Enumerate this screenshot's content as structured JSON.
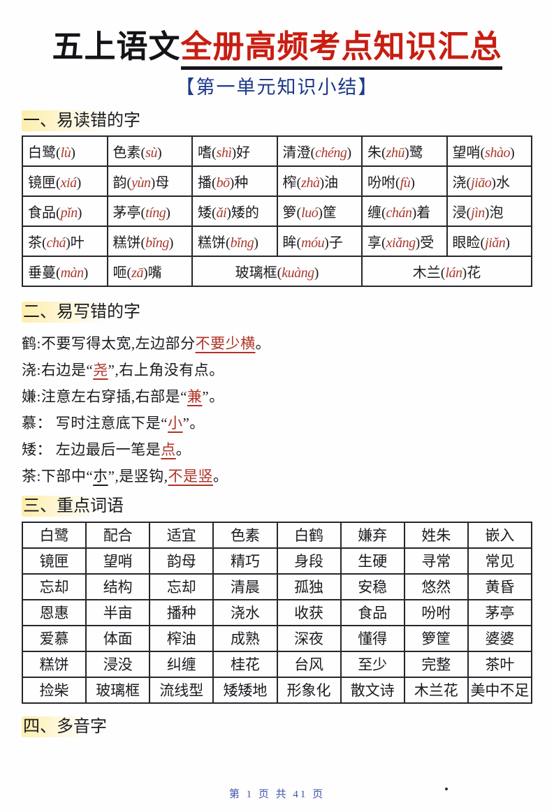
{
  "title": {
    "black": "五上语文",
    "red": "全册高频考点知识汇总"
  },
  "subtitle": "【第一单元知识小结】",
  "sections": {
    "s1": {
      "heading": "一、易读错的字"
    },
    "s2": {
      "heading": "二、易写错的字"
    },
    "s3": {
      "heading": "三、重点词语"
    },
    "s4": {
      "heading": "四、多音字"
    }
  },
  "table1": {
    "columns": 6,
    "rows": [
      [
        {
          "t": "白鹭(lù)"
        },
        {
          "t": "色素(sù)"
        },
        {
          "t": "嗜(shì)好"
        },
        {
          "t": "清澄(chéng)"
        },
        {
          "t": "朱(zhū)鹭"
        },
        {
          "t": "望哨(shào)"
        }
      ],
      [
        {
          "t": "镜匣(xiá)"
        },
        {
          "t": "韵(yùn)母"
        },
        {
          "t": "播(bō)种"
        },
        {
          "t": "榨(zhà)油"
        },
        {
          "t": "吩咐(fù)"
        },
        {
          "t": "浇(jiāo)水"
        }
      ],
      [
        {
          "t": "食品(pǐn)"
        },
        {
          "t": "茅亭(tíng)"
        },
        {
          "t": "矮(ǎi)矮的"
        },
        {
          "t": "箩(luó)筐"
        },
        {
          "t": "缠(chán)着"
        },
        {
          "t": "浸(jìn)泡"
        }
      ],
      [
        {
          "t": "茶(chá)叶"
        },
        {
          "t": "糕饼(bǐng)"
        },
        {
          "t": "糕饼(bǐng)"
        },
        {
          "t": "眸(móu)子"
        },
        {
          "t": "享(xiǎng)受"
        },
        {
          "t": "眼睑(jiǎn)"
        }
      ],
      [
        {
          "t": "垂蔓(màn)"
        },
        {
          "t": "咂(zā)嘴"
        },
        {
          "t": "玻璃框(kuàng)",
          "span": 2
        },
        {
          "t": "木兰(lán)花",
          "span": 2
        }
      ]
    ]
  },
  "mistakes": [
    [
      {
        "t": "鹤:不要写得太宽,左边部分"
      },
      {
        "t": "不要少横",
        "s": "ru"
      },
      {
        "t": "。"
      }
    ],
    [
      {
        "t": "浇:右边是“"
      },
      {
        "t": "尧",
        "s": "ru"
      },
      {
        "t": "”,右上角没有点。"
      }
    ],
    [
      {
        "t": "嫌:注意左右穿插,右部是“"
      },
      {
        "t": "兼",
        "s": "ru"
      },
      {
        "t": "”。"
      }
    ],
    [
      {
        "t": "慕： 写时注意底下是“"
      },
      {
        "t": "小",
        "s": "ru"
      },
      {
        "t": "”。"
      }
    ],
    [
      {
        "t": "矮： 左边最后一笔是"
      },
      {
        "t": "点",
        "s": "ru"
      },
      {
        "t": "。"
      }
    ],
    [
      {
        "t": "茶:下部中“"
      },
      {
        "t": "朩",
        "s": "u"
      },
      {
        "t": "”,是竖钩,"
      },
      {
        "t": "不是竖",
        "s": "ru"
      },
      {
        "t": "。"
      }
    ]
  ],
  "table2": {
    "columns": 8,
    "rows": [
      [
        "白鹭",
        "配合",
        "适宜",
        "色素",
        "白鹤",
        "嫌弃",
        "姓朱",
        "嵌入"
      ],
      [
        "镜匣",
        "望哨",
        "韵母",
        "精巧",
        "身段",
        "生硬",
        "寻常",
        "常见"
      ],
      [
        "忘却",
        "结构",
        "忘却",
        "清晨",
        "孤独",
        "安稳",
        "悠然",
        "黄昏"
      ],
      [
        "恩惠",
        "半亩",
        "播种",
        "浇水",
        "收获",
        "食品",
        "吩咐",
        "茅亭"
      ],
      [
        "爱慕",
        "体面",
        "榨油",
        "成熟",
        "深夜",
        "懂得",
        "箩筐",
        "婆婆"
      ],
      [
        "糕饼",
        "浸没",
        "纠缠",
        "桂花",
        "台风",
        "至少",
        "完整",
        "茶叶"
      ],
      [
        "捡柴",
        "玻璃框",
        "流线型",
        "矮矮地",
        "形象化",
        "散文诗",
        "木兰花",
        "美中不足"
      ]
    ]
  },
  "footer": {
    "page_label": "第 1 页 共 41 页"
  },
  "colors": {
    "title_red": "#c81e12",
    "pinyin_red": "#a9392c",
    "subtitle_blue": "#1d3a8a",
    "footer_blue": "#4054ac",
    "highlight_yellow": "#fce064",
    "ink": "#1b1a1f"
  }
}
